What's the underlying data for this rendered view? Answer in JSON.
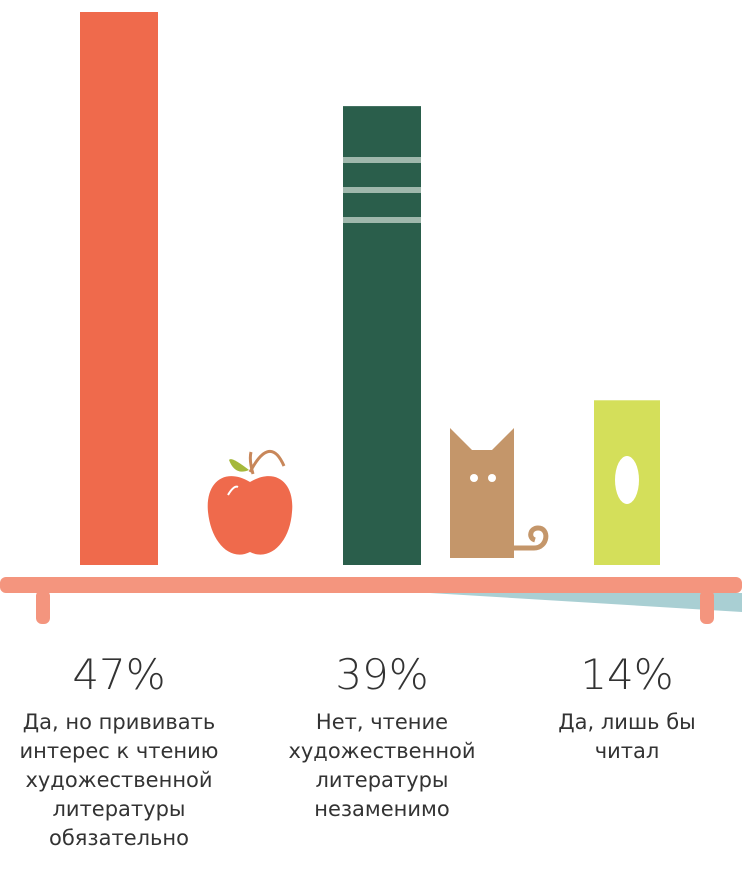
{
  "chart_data": {
    "type": "bar",
    "categories": [
      "Да, но прививать интерес к чтению художественной литературы обязательно",
      "Нет, чтение художественной литературы незаменимо",
      "Да, лишь бы читал"
    ],
    "values": [
      47,
      39,
      14
    ],
    "value_labels": [
      "47%",
      "39%",
      "14%"
    ],
    "colors": [
      "#ef6a4c",
      "#2a5e4b",
      "#d4df5a"
    ]
  }
}
